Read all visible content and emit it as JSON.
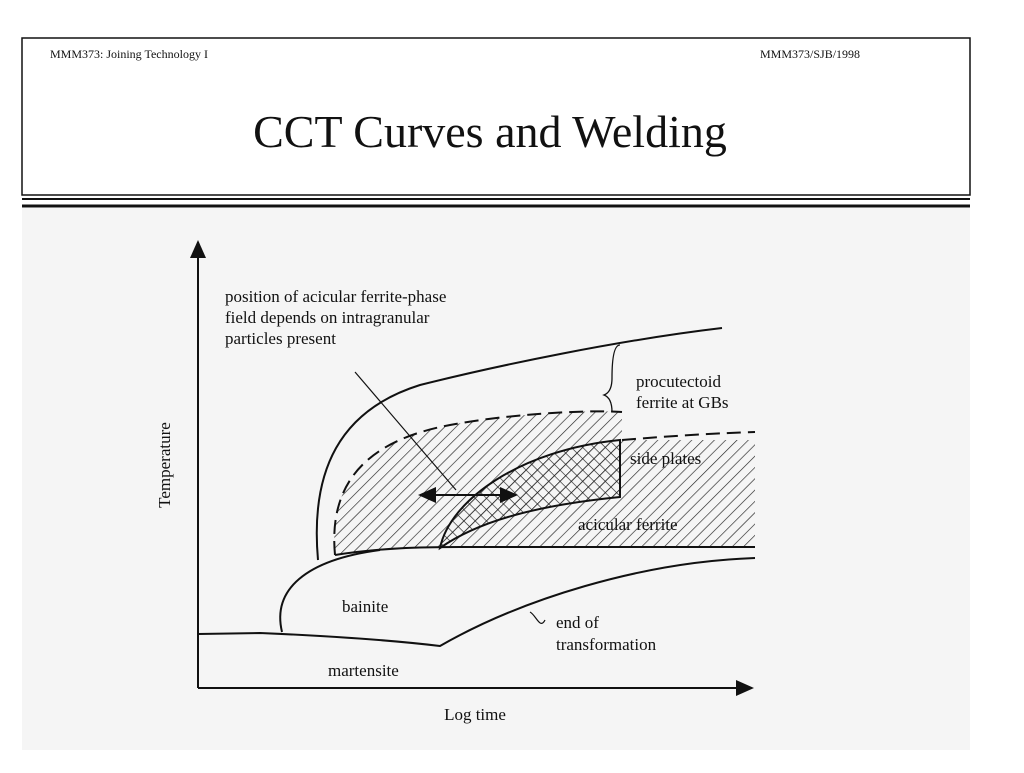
{
  "header": {
    "left": "MMM373: Joining Technology I",
    "right": "MMM373/SJB/1998",
    "title": "CCT Curves and Welding"
  },
  "diagram": {
    "y_axis_label": "Temperature",
    "x_axis_label": "Log time",
    "annotation": [
      "position of acicular ferrite-phase",
      "field depends on intragranular",
      "particles present"
    ],
    "labels": {
      "proeutectoid": [
        "procutectoid",
        "ferrite at GBs"
      ],
      "side_plates": "side plates",
      "acicular_ferrite": "acicular ferrite",
      "bainite": "bainite",
      "end_of_transformation": [
        "end of",
        "transformation"
      ],
      "martensite": "martensite"
    }
  }
}
